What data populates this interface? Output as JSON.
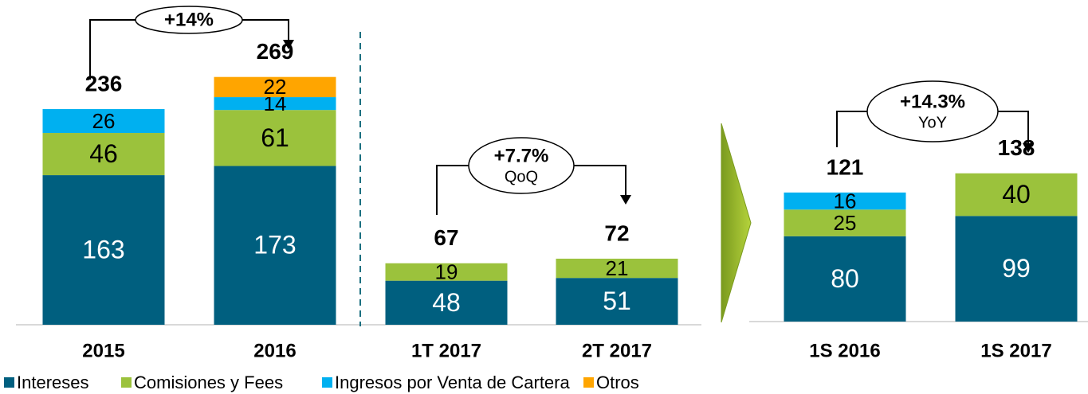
{
  "chart_data": [
    {
      "type": "bar",
      "stacked": true,
      "categories": [
        "2015",
        "2016",
        "1T 2017",
        "2T 2017"
      ],
      "series": [
        {
          "name": "Intereses",
          "color": "#005f7f",
          "values": [
            163,
            173,
            48,
            51
          ]
        },
        {
          "name": "Comisiones y Fees",
          "color": "#9bc23c",
          "values": [
            46,
            61,
            19,
            21
          ]
        },
        {
          "name": "Ingresos por Venta de Cartera",
          "color": "#00b0f0",
          "values": [
            26,
            14,
            null,
            null
          ]
        },
        {
          "name": "Otros",
          "color": "#ffa500",
          "values": [
            null,
            22,
            null,
            null
          ]
        }
      ],
      "totals": [
        236,
        269,
        67,
        72
      ],
      "annotations": [
        {
          "label": "+14%"
        },
        {
          "label": "+7.7%",
          "sublabel": "QoQ"
        }
      ]
    },
    {
      "type": "bar",
      "stacked": true,
      "categories": [
        "1S 2016",
        "1S 2017"
      ],
      "series": [
        {
          "name": "Intereses",
          "color": "#005f7f",
          "values": [
            80,
            99
          ]
        },
        {
          "name": "Comisiones y Fees",
          "color": "#9bc23c",
          "values": [
            25,
            40
          ]
        },
        {
          "name": "Ingresos por Venta de Cartera",
          "color": "#00b0f0",
          "values": [
            16,
            null
          ]
        }
      ],
      "totals": [
        121,
        138
      ],
      "annotations": [
        {
          "label": "+14.3%",
          "sublabel": "YoY"
        }
      ]
    }
  ]
}
